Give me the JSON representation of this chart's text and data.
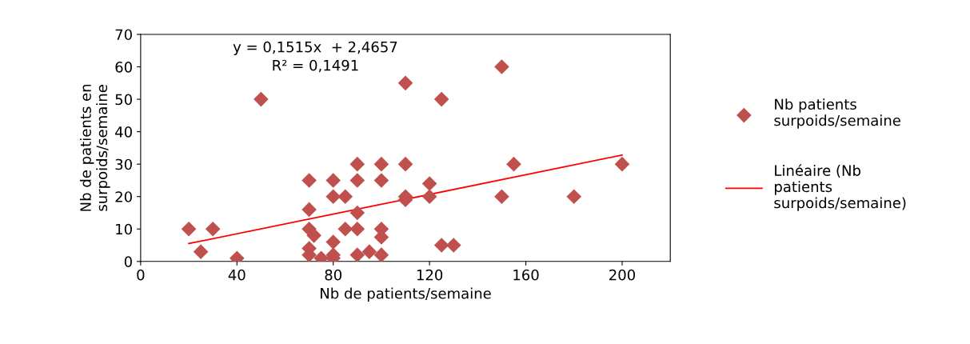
{
  "chart_data": {
    "type": "scatter",
    "xlabel": "Nb de patients/semaine",
    "ylabel": "Nb de patients en\nsurpoids/semaine",
    "annotations": [
      "y = 0,1515x  + 2,4657\nR² = 0,1491"
    ],
    "xlim": [
      0,
      220
    ],
    "xticks": [
      0,
      40,
      80,
      120,
      160,
      200
    ],
    "ylim": [
      0,
      70
    ],
    "yticks": [
      0,
      10,
      20,
      30,
      40,
      50,
      60,
      70
    ],
    "grid": false,
    "legend": "right",
    "marker": "diamond",
    "series": [
      {
        "name": "Nb patients\nsurpoids/semaine",
        "color": "#c0504d",
        "x": [
          20,
          25,
          30,
          40,
          50,
          70,
          70,
          70,
          70,
          70,
          72,
          75,
          80,
          80,
          80,
          80,
          80,
          85,
          85,
          90,
          90,
          90,
          90,
          90,
          95,
          100,
          100,
          100,
          100,
          100,
          110,
          110,
          110,
          110,
          120,
          120,
          125,
          125,
          130,
          150,
          150,
          155,
          180,
          200
        ],
        "values": [
          10,
          3,
          10,
          1,
          50,
          25,
          16,
          10,
          4,
          2,
          8,
          1,
          25,
          20,
          6,
          2,
          1,
          20,
          10,
          30,
          25,
          15,
          10,
          2,
          3,
          30,
          25,
          10,
          7.5,
          2,
          55,
          30,
          20,
          19,
          24,
          20,
          50,
          5,
          5,
          60,
          20,
          30,
          20,
          30
        ]
      },
      {
        "name": "Linéaire (Nb\npatients\nsurpoids/semaine)",
        "color": "#ff0000",
        "type": "line",
        "marker": "none",
        "x": [
          20,
          200
        ],
        "values": [
          5.5,
          32.8
        ]
      }
    ]
  }
}
